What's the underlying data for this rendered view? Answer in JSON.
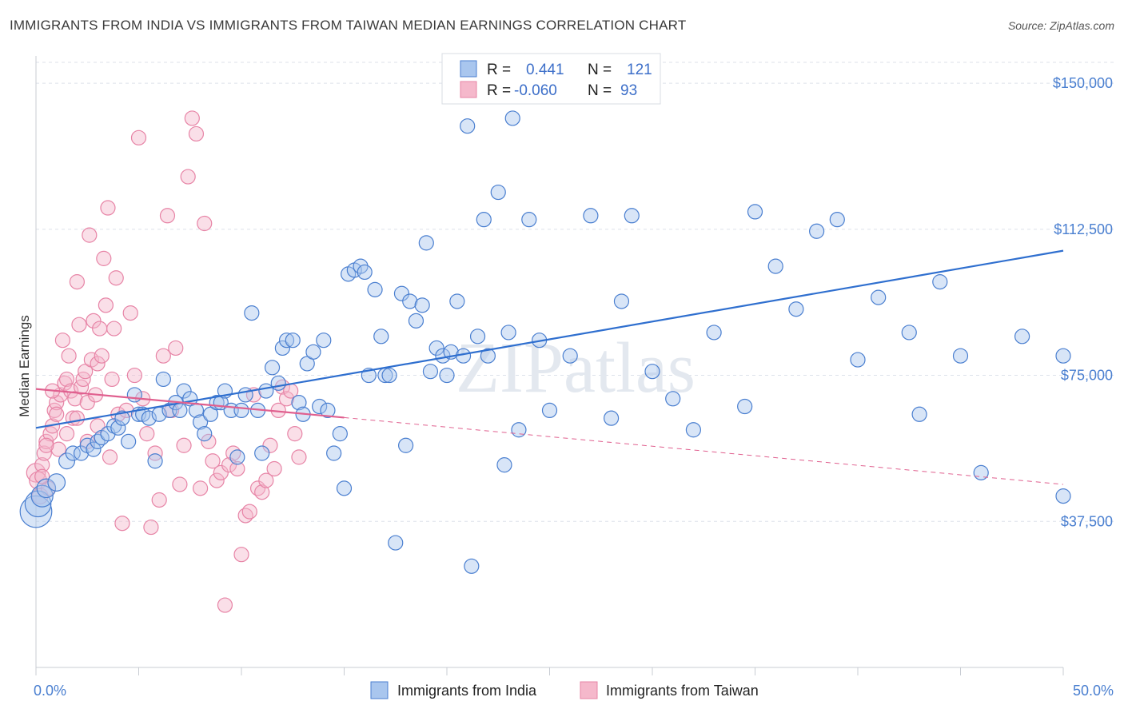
{
  "title": "IMMIGRANTS FROM INDIA VS IMMIGRANTS FROM TAIWAN MEDIAN EARNINGS CORRELATION CHART",
  "source": "Source: ZipAtlas.com",
  "watermark": "ZIPatlas",
  "colors": {
    "india_fill": "#a9c6ee",
    "india_stroke": "#4a7fd0",
    "india_line": "#2f6fcf",
    "taiwan_fill": "#f5b8cb",
    "taiwan_stroke": "#e784a6",
    "taiwan_line": "#e0608f",
    "grid": "#dde2ea",
    "tick_label": "#4a7fd0"
  },
  "legend": {
    "rows": [
      {
        "r_label": "R =",
        "r_value": "0.441",
        "n_label": "N =",
        "n_value": "121"
      },
      {
        "r_label": "R =",
        "r_value": "-0.060",
        "n_label": "N =",
        "n_value": "93"
      }
    ]
  },
  "chart_data": {
    "type": "scatter",
    "title": "IMMIGRANTS FROM INDIA VS IMMIGRANTS FROM TAIWAN MEDIAN EARNINGS CORRELATION CHART",
    "xlabel": "",
    "ylabel": "Median Earnings",
    "xlim": [
      0,
      50
    ],
    "ylim": [
      0,
      157000
    ],
    "x_tick_labels": [
      "0.0%",
      "50.0%"
    ],
    "y_ticks": [
      37500,
      75000,
      112500,
      150000
    ],
    "y_tick_labels": [
      "$37,500",
      "$75,000",
      "$112,500",
      "$150,000"
    ],
    "grid": true,
    "series": [
      {
        "name": "Immigrants from India",
        "r": 0.441,
        "n": 121,
        "trend": {
          "x0": 0.0,
          "y0": 61500,
          "x1": 50.0,
          "y1": 107000,
          "dashed_from": null
        },
        "points": [
          [
            0.0,
            40000,
            2.2
          ],
          [
            0.1,
            42000,
            1.8
          ],
          [
            0.3,
            44000,
            1.5
          ],
          [
            0.5,
            46000,
            1.3
          ],
          [
            1.0,
            47500,
            1.2
          ],
          [
            1.5,
            53000,
            1.1
          ],
          [
            1.8,
            55000,
            1
          ],
          [
            2.2,
            55000,
            1
          ],
          [
            2.5,
            57000,
            1
          ],
          [
            2.8,
            56000,
            1
          ],
          [
            3.0,
            58000,
            1
          ],
          [
            3.2,
            59000,
            1
          ],
          [
            3.5,
            60000,
            1
          ],
          [
            3.8,
            62000,
            1
          ],
          [
            4.0,
            61500,
            1
          ],
          [
            4.2,
            64000,
            1
          ],
          [
            4.5,
            58000,
            1
          ],
          [
            4.8,
            70000,
            1
          ],
          [
            5.0,
            65000,
            1
          ],
          [
            5.2,
            65000,
            1
          ],
          [
            5.5,
            64000,
            1
          ],
          [
            5.8,
            53000,
            1
          ],
          [
            6.0,
            65000,
            1
          ],
          [
            6.2,
            74000,
            1
          ],
          [
            6.5,
            66000,
            1
          ],
          [
            6.8,
            68000,
            1
          ],
          [
            7.0,
            66000,
            1
          ],
          [
            7.2,
            71000,
            1
          ],
          [
            7.5,
            69000,
            1
          ],
          [
            7.8,
            66000,
            1
          ],
          [
            8.0,
            63000,
            1
          ],
          [
            8.2,
            60000,
            1
          ],
          [
            8.5,
            65000,
            1
          ],
          [
            8.8,
            68000,
            1
          ],
          [
            9.0,
            68000,
            1
          ],
          [
            9.2,
            71000,
            1
          ],
          [
            9.5,
            66000,
            1
          ],
          [
            9.8,
            54000,
            1
          ],
          [
            10.0,
            66000,
            1
          ],
          [
            10.2,
            70000,
            1
          ],
          [
            10.5,
            91000,
            1
          ],
          [
            10.8,
            66000,
            1
          ],
          [
            11.0,
            55000,
            1
          ],
          [
            11.2,
            71000,
            1
          ],
          [
            11.5,
            77000,
            1
          ],
          [
            11.8,
            73000,
            1
          ],
          [
            12.0,
            82000,
            1
          ],
          [
            12.2,
            84000,
            1
          ],
          [
            12.5,
            84000,
            1
          ],
          [
            12.8,
            68000,
            1
          ],
          [
            13.0,
            65000,
            1
          ],
          [
            13.2,
            78000,
            1
          ],
          [
            13.5,
            81000,
            1
          ],
          [
            13.8,
            67000,
            1
          ],
          [
            14.0,
            84000,
            1
          ],
          [
            14.2,
            66000,
            1
          ],
          [
            14.5,
            55000,
            1
          ],
          [
            14.8,
            60000,
            1
          ],
          [
            15.0,
            46000,
            1
          ],
          [
            15.2,
            101000,
            1
          ],
          [
            15.5,
            102000,
            1
          ],
          [
            15.8,
            103000,
            1
          ],
          [
            16.0,
            101500,
            1
          ],
          [
            16.2,
            75000,
            1
          ],
          [
            16.5,
            97000,
            1
          ],
          [
            16.8,
            85000,
            1
          ],
          [
            17.0,
            75000,
            1
          ],
          [
            17.2,
            75000,
            1
          ],
          [
            17.5,
            32000,
            1
          ],
          [
            17.8,
            96000,
            1
          ],
          [
            18.0,
            57000,
            1
          ],
          [
            18.2,
            94000,
            1
          ],
          [
            18.5,
            89000,
            1
          ],
          [
            18.8,
            93000,
            1
          ],
          [
            19.0,
            109000,
            1
          ],
          [
            19.2,
            76000,
            1
          ],
          [
            19.5,
            82000,
            1
          ],
          [
            19.8,
            80000,
            1
          ],
          [
            20.0,
            75000,
            1
          ],
          [
            20.2,
            81000,
            1
          ],
          [
            20.5,
            94000,
            1
          ],
          [
            20.8,
            80000,
            1
          ],
          [
            21.0,
            139000,
            1
          ],
          [
            21.2,
            26000,
            1
          ],
          [
            21.5,
            85000,
            1
          ],
          [
            21.8,
            115000,
            1
          ],
          [
            22.0,
            80000,
            1
          ],
          [
            22.5,
            122000,
            1
          ],
          [
            22.8,
            52000,
            1
          ],
          [
            23.0,
            86000,
            1
          ],
          [
            23.2,
            141000,
            1
          ],
          [
            23.5,
            61000,
            1
          ],
          [
            24.0,
            115000,
            1
          ],
          [
            24.5,
            84000,
            1
          ],
          [
            25.0,
            66000,
            1
          ],
          [
            26.0,
            80000,
            1
          ],
          [
            27.0,
            116000,
            1
          ],
          [
            28.0,
            64000,
            1
          ],
          [
            28.5,
            94000,
            1
          ],
          [
            29.0,
            116000,
            1
          ],
          [
            30.0,
            76000,
            1
          ],
          [
            31.0,
            69000,
            1
          ],
          [
            32.0,
            61000,
            1
          ],
          [
            33.0,
            86000,
            1
          ],
          [
            34.5,
            67000,
            1
          ],
          [
            35.0,
            117000,
            1
          ],
          [
            36.0,
            103000,
            1
          ],
          [
            37.0,
            92000,
            1
          ],
          [
            38.0,
            112000,
            1
          ],
          [
            39.0,
            115000,
            1
          ],
          [
            40.0,
            79000,
            1
          ],
          [
            41.0,
            95000,
            1
          ],
          [
            42.5,
            86000,
            1
          ],
          [
            43.0,
            65000,
            1
          ],
          [
            44.0,
            99000,
            1
          ],
          [
            45.0,
            80000,
            1
          ],
          [
            46.0,
            50000,
            1
          ],
          [
            48.0,
            85000,
            1
          ],
          [
            51.0,
            44000,
            1
          ],
          [
            52.0,
            80000,
            1
          ]
        ]
      },
      {
        "name": "Immigrants from Taiwan",
        "r": -0.06,
        "n": 93,
        "trend": {
          "x0": 0.0,
          "y0": 71500,
          "x1": 50.0,
          "y1": 47000,
          "dashed_from": 15.0
        },
        "points": [
          [
            0.0,
            50000,
            1.3
          ],
          [
            0.1,
            48000,
            1.2
          ],
          [
            0.2,
            44000,
            1.1
          ],
          [
            0.3,
            52000,
            1
          ],
          [
            0.4,
            55000,
            1
          ],
          [
            0.5,
            58000,
            1
          ],
          [
            0.6,
            46000,
            1
          ],
          [
            0.7,
            60000,
            1
          ],
          [
            0.8,
            62000,
            1
          ],
          [
            0.9,
            66000,
            1
          ],
          [
            1.0,
            68000,
            1
          ],
          [
            1.1,
            56000,
            1
          ],
          [
            1.2,
            70000,
            1
          ],
          [
            1.3,
            84000,
            1
          ],
          [
            1.4,
            73000,
            1
          ],
          [
            1.5,
            74000,
            1
          ],
          [
            1.6,
            80000,
            1
          ],
          [
            1.7,
            71000,
            1
          ],
          [
            1.8,
            64000,
            1
          ],
          [
            1.9,
            69000,
            1
          ],
          [
            2.0,
            99000,
            1
          ],
          [
            2.1,
            88000,
            1
          ],
          [
            2.2,
            72000,
            1
          ],
          [
            2.3,
            74000,
            1
          ],
          [
            2.4,
            76000,
            1
          ],
          [
            2.5,
            68000,
            1
          ],
          [
            2.6,
            111000,
            1
          ],
          [
            2.7,
            79000,
            1
          ],
          [
            2.8,
            89000,
            1
          ],
          [
            2.9,
            70000,
            1
          ],
          [
            3.0,
            78000,
            1
          ],
          [
            3.1,
            87000,
            1
          ],
          [
            3.2,
            80000,
            1
          ],
          [
            3.3,
            105000,
            1
          ],
          [
            3.4,
            93000,
            1
          ],
          [
            3.5,
            118000,
            1
          ],
          [
            3.6,
            54000,
            1
          ],
          [
            3.7,
            74000,
            1
          ],
          [
            3.8,
            87000,
            1
          ],
          [
            3.9,
            100000,
            1
          ],
          [
            4.0,
            65000,
            1
          ],
          [
            4.2,
            37000,
            1
          ],
          [
            4.4,
            66000,
            1
          ],
          [
            4.6,
            91000,
            1
          ],
          [
            4.8,
            75000,
            1
          ],
          [
            5.0,
            136000,
            1
          ],
          [
            5.2,
            69000,
            1
          ],
          [
            5.4,
            60000,
            1
          ],
          [
            5.6,
            36000,
            1
          ],
          [
            5.8,
            55000,
            1
          ],
          [
            6.0,
            43000,
            1
          ],
          [
            6.2,
            80000,
            1
          ],
          [
            6.4,
            116000,
            1
          ],
          [
            6.6,
            66000,
            1
          ],
          [
            6.8,
            82000,
            1
          ],
          [
            7.0,
            47000,
            1
          ],
          [
            7.2,
            57000,
            1
          ],
          [
            7.4,
            126000,
            1
          ],
          [
            7.6,
            141000,
            1
          ],
          [
            7.8,
            137000,
            1
          ],
          [
            8.0,
            46000,
            1
          ],
          [
            8.2,
            114000,
            1
          ],
          [
            8.4,
            58000,
            1
          ],
          [
            8.6,
            53000,
            1
          ],
          [
            8.8,
            48000,
            1
          ],
          [
            9.0,
            50000,
            1
          ],
          [
            9.2,
            16000,
            1
          ],
          [
            9.4,
            52000,
            1
          ],
          [
            9.6,
            55000,
            1
          ],
          [
            9.8,
            51000,
            1
          ],
          [
            10.0,
            29000,
            1
          ],
          [
            10.2,
            39000,
            1
          ],
          [
            10.4,
            40000,
            1
          ],
          [
            10.6,
            70000,
            1
          ],
          [
            10.8,
            46000,
            1
          ],
          [
            11.0,
            45000,
            1
          ],
          [
            11.2,
            48000,
            1
          ],
          [
            11.4,
            57000,
            1
          ],
          [
            11.6,
            51000,
            1
          ],
          [
            11.8,
            66000,
            1
          ],
          [
            12.0,
            72000,
            1
          ],
          [
            12.2,
            69000,
            1
          ],
          [
            12.4,
            71000,
            1
          ],
          [
            12.6,
            60000,
            1
          ],
          [
            12.8,
            54000,
            1
          ],
          [
            0.3,
            49000,
            1
          ],
          [
            0.5,
            57000,
            1
          ],
          [
            0.8,
            71000,
            1
          ],
          [
            1.0,
            65000,
            1
          ],
          [
            1.5,
            60000,
            1
          ],
          [
            2.0,
            64000,
            1
          ],
          [
            2.5,
            58000,
            1
          ],
          [
            3.0,
            62000,
            1
          ]
        ]
      }
    ]
  },
  "bottom_legend": [
    {
      "label": "Immigrants from India"
    },
    {
      "label": "Immigrants from Taiwan"
    }
  ]
}
